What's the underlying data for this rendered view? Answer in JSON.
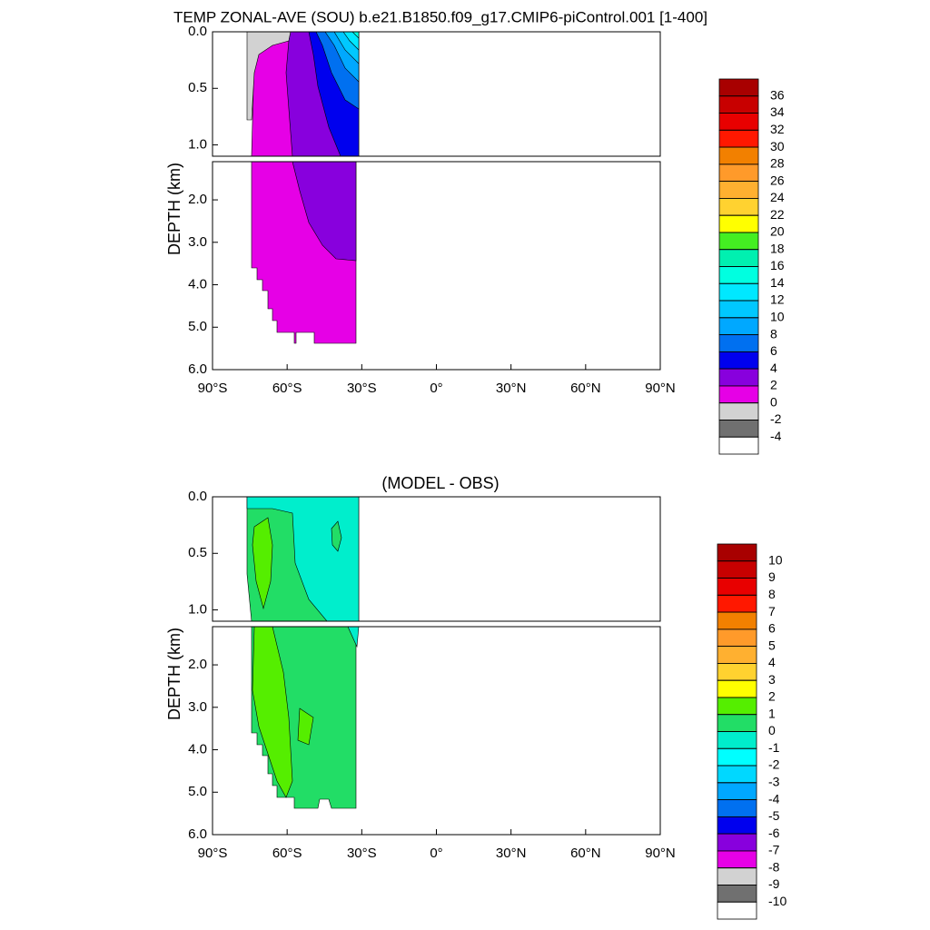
{
  "chart_data": [
    {
      "type": "contour",
      "title": "TEMP ZONAL-AVE (SOU) b.e21.B1850.f09_g17.CMIP6-piControl.001 [1-400]",
      "ylabel": "DEPTH (km)",
      "xlim": [
        -90,
        90
      ],
      "xticks": [
        {
          "value": -90,
          "label": "90°S"
        },
        {
          "value": -60,
          "label": "60°S"
        },
        {
          "value": -30,
          "label": "30°S"
        },
        {
          "value": 0,
          "label": "0°"
        },
        {
          "value": 30,
          "label": "30°N"
        },
        {
          "value": 60,
          "label": "60°N"
        },
        {
          "value": 90,
          "label": "90°N"
        }
      ],
      "panels": [
        {
          "ylim": [
            0,
            1.1
          ],
          "yticks": [
            {
              "value": 0,
              "label": "0.0"
            },
            {
              "value": 0.5,
              "label": "0.5"
            },
            {
              "value": 1,
              "label": "1.0"
            }
          ]
        },
        {
          "ylim": [
            1.1,
            6
          ],
          "yticks": [
            {
              "value": 2,
              "label": "2.0"
            },
            {
              "value": 3,
              "label": "3.0"
            },
            {
              "value": 4,
              "label": "4.0"
            },
            {
              "value": 5,
              "label": "5.0"
            },
            {
              "value": 6,
              "label": "6.0"
            }
          ]
        }
      ],
      "colorbar": {
        "levels": [
          36,
          34,
          32,
          30,
          28,
          26,
          24,
          22,
          20,
          18,
          16,
          14,
          12,
          10,
          8,
          6,
          4,
          2,
          0,
          -2,
          -4
        ],
        "colors": [
          "#a80000",
          "#c80000",
          "#e80000",
          "#ff1800",
          "#f28000",
          "#ff9a2a",
          "#ffb030",
          "#ffd230",
          "#ffff00",
          "#44ee22",
          "#00f0b0",
          "#00ffe0",
          "#00e8ff",
          "#00c8ff",
          "#00a8ff",
          "#0070f0",
          "#0000ee",
          "#8800dd",
          "#e600e6",
          "#d2d2d2",
          "#707070",
          "#ffffff"
        ]
      }
    },
    {
      "type": "contour",
      "title": "(MODEL - OBS)",
      "ylabel": "DEPTH (km)",
      "xlim": [
        -90,
        90
      ],
      "xticks": [
        {
          "value": -90,
          "label": "90°S"
        },
        {
          "value": -60,
          "label": "60°S"
        },
        {
          "value": -30,
          "label": "30°S"
        },
        {
          "value": 0,
          "label": "0°"
        },
        {
          "value": 30,
          "label": "30°N"
        },
        {
          "value": 60,
          "label": "60°N"
        },
        {
          "value": 90,
          "label": "90°N"
        }
      ],
      "panels": [
        {
          "ylim": [
            0,
            1.1
          ],
          "yticks": [
            {
              "value": 0,
              "label": "0.0"
            },
            {
              "value": 0.5,
              "label": "0.5"
            },
            {
              "value": 1,
              "label": "1.0"
            }
          ]
        },
        {
          "ylim": [
            1.1,
            6
          ],
          "yticks": [
            {
              "value": 2,
              "label": "2.0"
            },
            {
              "value": 3,
              "label": "3.0"
            },
            {
              "value": 4,
              "label": "4.0"
            },
            {
              "value": 5,
              "label": "5.0"
            },
            {
              "value": 6,
              "label": "6.0"
            }
          ]
        }
      ],
      "colorbar": {
        "levels": [
          10,
          9,
          8,
          7,
          6,
          5,
          4,
          3,
          2,
          1,
          0,
          -1,
          -2,
          -3,
          -4,
          -5,
          -6,
          -7,
          -8,
          -9,
          -10
        ],
        "colors": [
          "#a80000",
          "#c80000",
          "#e80000",
          "#ff1800",
          "#f28000",
          "#ff9a2a",
          "#ffb030",
          "#ffd230",
          "#ffff00",
          "#55ee00",
          "#22dd66",
          "#00eecc",
          "#00ffff",
          "#00d8ff",
          "#00a8ff",
          "#0070f0",
          "#0000ee",
          "#8800dd",
          "#e600e6",
          "#d2d2d2",
          "#707070",
          "#ffffff"
        ]
      }
    }
  ]
}
